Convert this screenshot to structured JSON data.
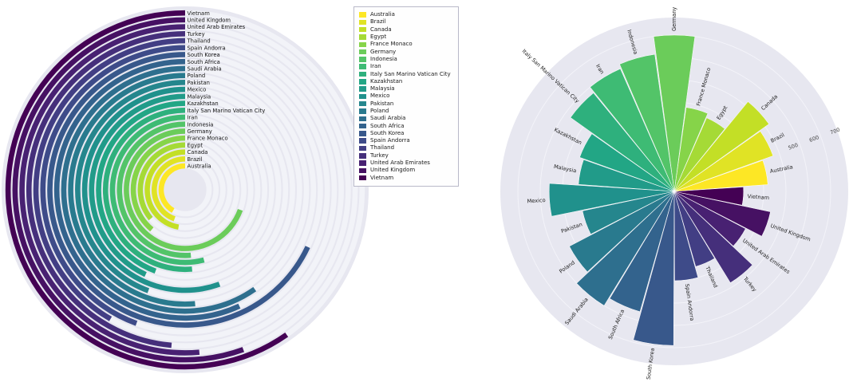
{
  "chart_data": [
    {
      "type": "radial-bar",
      "title": "",
      "description": "Concentric radial bar chart; arcs start at 12 o'clock and sweep counterclockwise; rings ordered inner-to-outer alphabetically; ring labels stacked at 12 o'clock from outermost (Vietnam) to innermost (Australia)",
      "categories": [
        "Australia",
        "Brazil",
        "Canada",
        "Egypt",
        "France Monaco",
        "Germany",
        "Indonesia",
        "Iran",
        "Italy San Marino Vatican City",
        "Kazakhstan",
        "Malaysia",
        "Mexico",
        "Pakistan",
        "Poland",
        "Saudi Arabia",
        "South Africa",
        "South Korea",
        "Spain Andorra",
        "Thailand",
        "Turkey",
        "United Arab Emirates",
        "United Kingdom",
        "Vietnam"
      ],
      "sweep_deg": [
        150,
        160,
        170,
        130,
        140,
        250,
        185,
        195,
        185,
        160,
        155,
        200,
        160,
        185,
        215,
        205,
        245,
        160,
        150,
        175,
        185,
        200,
        215
      ],
      "palette": [
        "#fde725",
        "#e0e325",
        "#c3df26",
        "#a5da36",
        "#86d449",
        "#6bcc5a",
        "#53c468",
        "#3ebb74",
        "#2eb07d",
        "#22a685",
        "#219b89",
        "#20918c",
        "#25868d",
        "#297a8e",
        "#2e6f8e",
        "#33638d",
        "#38588b",
        "#3e4b89",
        "#423e84",
        "#452f7b",
        "#482172",
        "#461163",
        "#440154"
      ],
      "bg_color": "#e7e7f0",
      "track_color": "#f2f3f8",
      "label_color": "#111111"
    },
    {
      "type": "polar-bar",
      "title": "",
      "description": "Polar rose chart; equal-width wedges from center, Germany centered at top, categories proceeding counterclockwise in alphabetical order; bar length encodes value",
      "categories": [
        "Australia",
        "Brazil",
        "Canada",
        "Egypt",
        "France Monaco",
        "Germany",
        "Indonesia",
        "Iran",
        "Italy San Marino Vatican City",
        "Kazakhstan",
        "Malaysia",
        "Mexico",
        "Pakistan",
        "Poland",
        "Saudi Arabia",
        "South Africa",
        "South Korea",
        "Spain Andorra",
        "Thailand",
        "Turkey",
        "United Arab Emirates",
        "United Kingdom",
        "Vietnam"
      ],
      "values": [
        420,
        470,
        520,
        360,
        380,
        700,
        620,
        600,
        570,
        450,
        430,
        560,
        420,
        530,
        600,
        560,
        690,
        400,
        350,
        480,
        360,
        440,
        310
      ],
      "start_category_top": "Germany",
      "angular_direction": "counterclockwise alphabetical",
      "rticks": [
        500,
        600,
        700
      ],
      "grid_values": [
        100,
        200,
        300,
        400,
        500,
        600,
        700
      ],
      "rlim": [
        0,
        760
      ],
      "tick_angle_deg": 70,
      "bg_color": "#e7e7f0",
      "grid_color": "#f3f3f9",
      "label_color": "#222222",
      "tick_label_color": "#444444"
    }
  ],
  "legend": {
    "entries": [
      "Australia",
      "Brazil",
      "Canada",
      "Egypt",
      "France Monaco",
      "Germany",
      "Indonesia",
      "Iran",
      "Italy San Marino Vatican City",
      "Kazakhstan",
      "Malaysia",
      "Mexico",
      "Pakistan",
      "Poland",
      "Saudi Arabia",
      "South Africa",
      "South Korea",
      "Spain Andorra",
      "Thailand",
      "Turkey",
      "United Arab Emirates",
      "United Kingdom",
      "Vietnam"
    ]
  }
}
